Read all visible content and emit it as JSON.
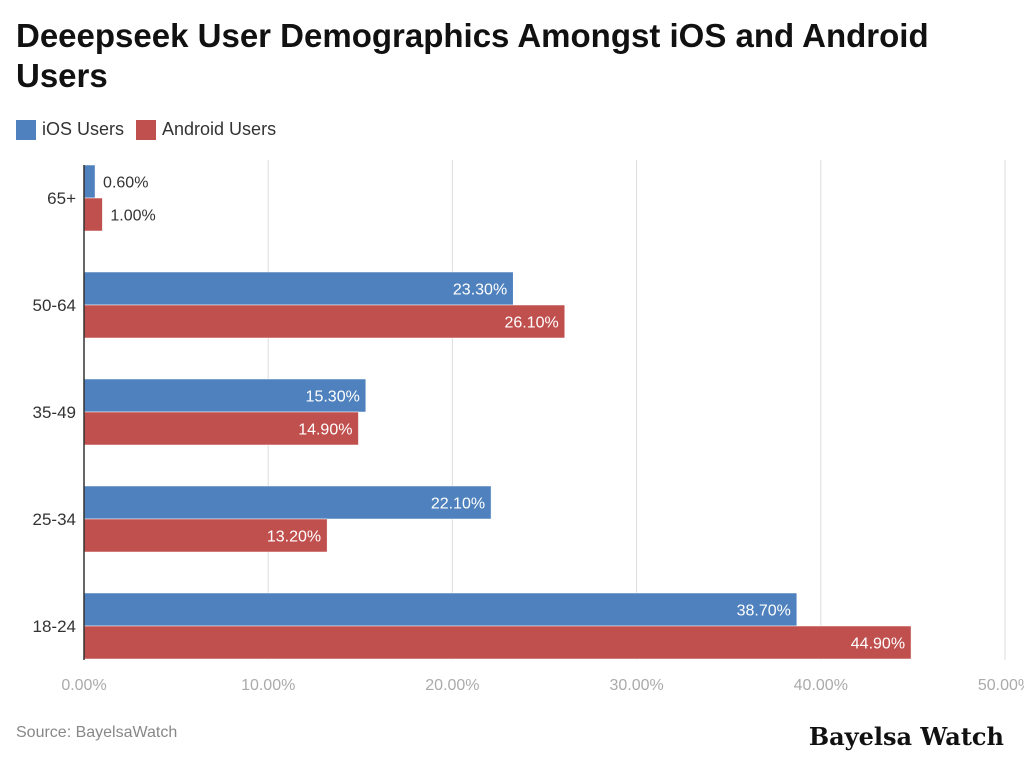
{
  "chart_data": {
    "type": "bar",
    "orientation": "horizontal",
    "title": "Deeepseek User Demographics Amongst iOS and Android Users",
    "categories": [
      "65+",
      "50-64",
      "35-49",
      "25-34",
      "18-24"
    ],
    "series": [
      {
        "name": "iOS Users",
        "color": "#4e81bd",
        "values": [
          0.6,
          23.3,
          15.3,
          22.1,
          38.7
        ],
        "labels": [
          "0.60%",
          "23.30%",
          "15.30%",
          "22.10%",
          "38.70%"
        ]
      },
      {
        "name": "Android Users",
        "color": "#c0504e",
        "values": [
          1.0,
          26.1,
          14.9,
          13.2,
          44.9
        ],
        "labels": [
          "1.00%",
          "26.10%",
          "14.90%",
          "13.20%",
          "44.90%"
        ]
      }
    ],
    "xlim": [
      0,
      50
    ],
    "xticks": [
      "0.00%",
      "10.00%",
      "20.00%",
      "30.00%",
      "40.00%",
      "50.00%"
    ],
    "grid": true,
    "legend": "top-left",
    "xlabel": "",
    "ylabel": ""
  },
  "source": "Source: BayelsaWatch",
  "brand": "Bayelsa Watch"
}
